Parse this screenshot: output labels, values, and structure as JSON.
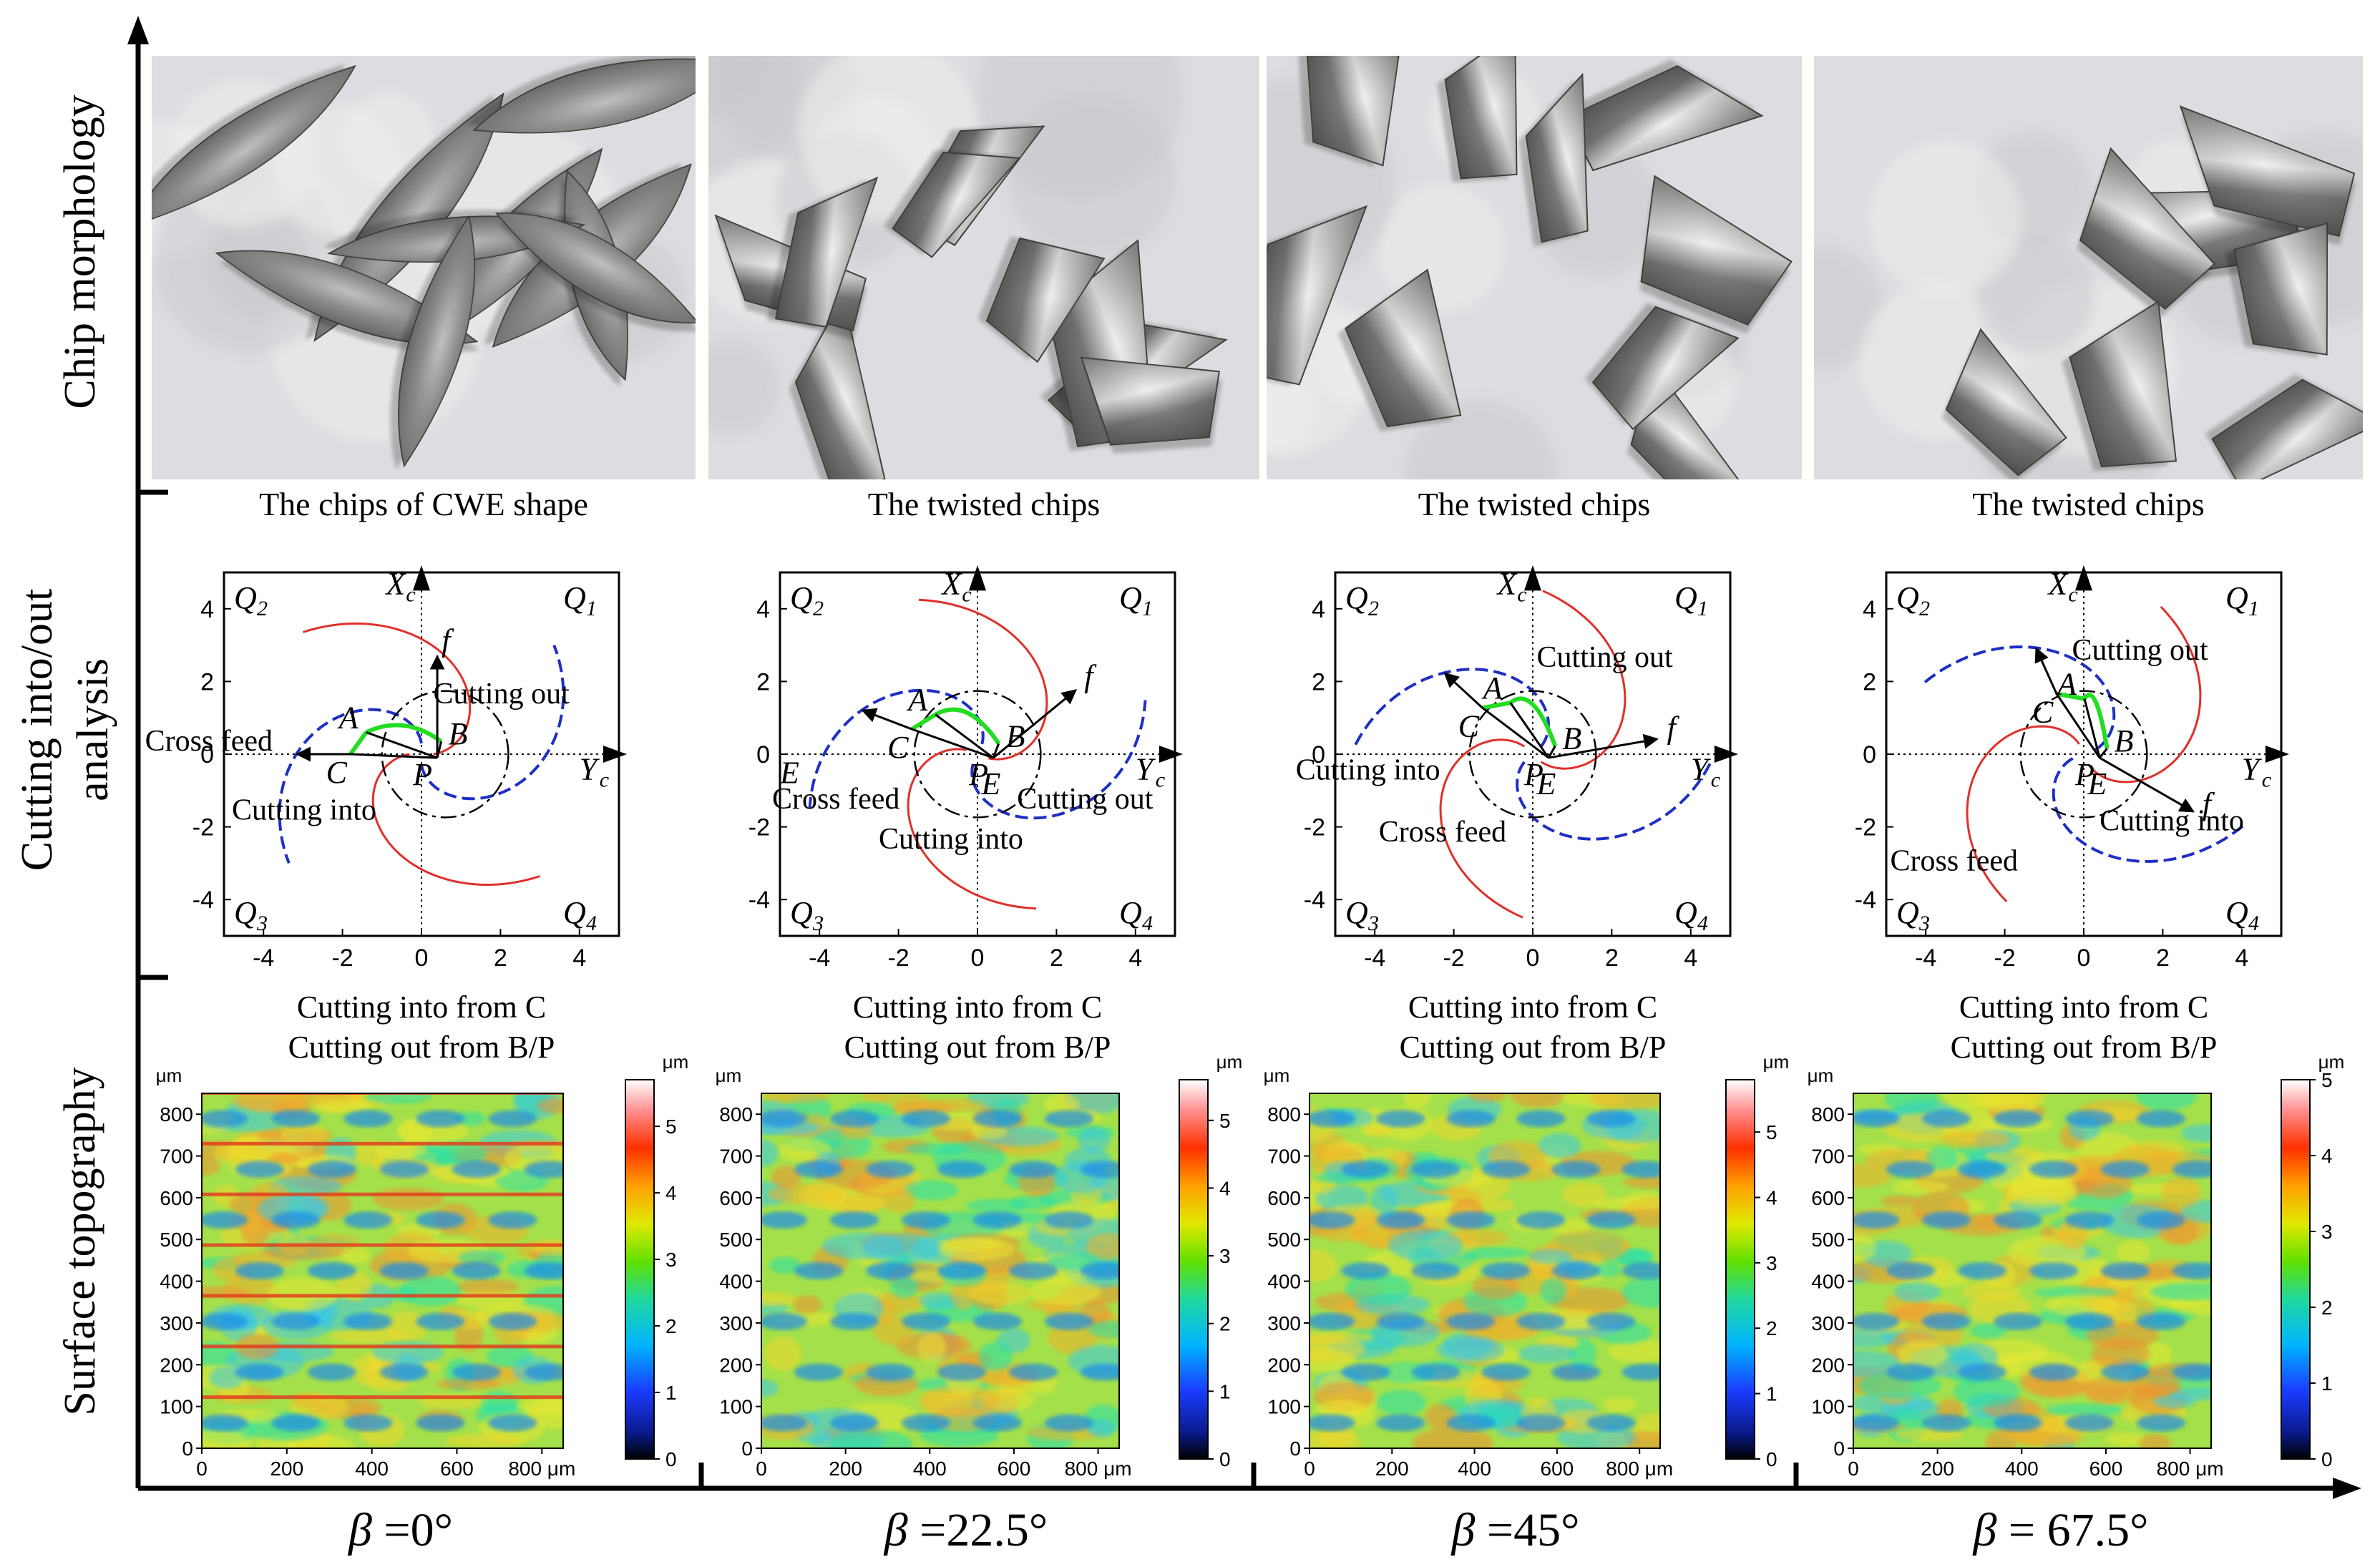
{
  "row_labels": {
    "chip": "Chip morphology",
    "cutting_line1": "Cutting into/out",
    "cutting_line2": "analysis",
    "surface": "Surface topography"
  },
  "beta_symbol": "β",
  "columns": [
    {
      "caption": "The chips of CWE shape",
      "beta": "=0°",
      "entry_text": "Cutting into from C",
      "exit_text": "Cutting out from B/P",
      "labels": {
        "A": "A",
        "B": "B",
        "C": "C",
        "P": "P",
        "f": "f",
        "cross_feed": "Cross feed",
        "cut_in": "Cutting into",
        "cut_out": "Cutting out"
      },
      "colorbar_ticks": [
        "0",
        "1",
        "2",
        "3",
        "4",
        "5"
      ],
      "colorbar_max": 5.7
    },
    {
      "caption": "The twisted chips",
      "beta": "=22.5°",
      "entry_text": "Cutting into from C",
      "exit_text": "Cutting out from B/P",
      "labels": {
        "A": "A",
        "B": "B",
        "C": "C",
        "P": "P",
        "E": "E",
        "E2": "E",
        "f": "f",
        "cross_feed": "Cross feed",
        "cut_in": "Cutting into",
        "cut_out": "Cutting out"
      },
      "colorbar_ticks": [
        "0",
        "1",
        "2",
        "3",
        "4",
        "5"
      ],
      "colorbar_max": 5.6
    },
    {
      "caption": "The twisted chips",
      "beta": "=45°",
      "entry_text": "Cutting into from C",
      "exit_text": "Cutting out from B/P",
      "labels": {
        "A": "A",
        "B": "B",
        "C": "C",
        "P": "P",
        "E": "E",
        "f": "f",
        "cross_feed": "Cross feed",
        "cut_in": "Cutting into",
        "cut_out": "Cutting out"
      },
      "colorbar_ticks": [
        "0",
        "1",
        "2",
        "3",
        "4",
        "5"
      ],
      "colorbar_max": 5.8
    },
    {
      "caption": "The twisted chips",
      "beta": "= 67.5°",
      "entry_text": "Cutting into from C",
      "exit_text": "Cutting out from B/P",
      "labels": {
        "A": "A",
        "B": "B",
        "C": "C",
        "P": "P",
        "E": "E",
        "f": "f",
        "cross_feed": "Cross feed",
        "cut_in": "Cutting into",
        "cut_out": "Cutting out"
      },
      "colorbar_ticks": [
        "0",
        "1",
        "2",
        "3",
        "4",
        "5"
      ],
      "colorbar_max": 5.0
    }
  ],
  "quadrants": {
    "q1": "Q",
    "q2": "Q",
    "q3": "Q",
    "q4": "Q",
    "s1": "1",
    "s2": "2",
    "s3": "3",
    "s4": "4"
  },
  "axis_x_label": "X",
  "axis_y_label": "Y",
  "axis_sub": "c",
  "axis_ticks": [
    "-4",
    "-2",
    "0",
    "2",
    "4"
  ],
  "topo_unit": "μm",
  "topo_y_ticks": [
    "0",
    "100",
    "200",
    "300",
    "400",
    "500",
    "600",
    "700",
    "800"
  ],
  "topo_x_ticks": [
    "0",
    "200",
    "400",
    "600",
    "800"
  ],
  "topo_x_last": "800 μm",
  "colors": {
    "red": "#e0302a",
    "blue": "#1f2fc4",
    "green": "#22dd22",
    "black": "#000000"
  }
}
